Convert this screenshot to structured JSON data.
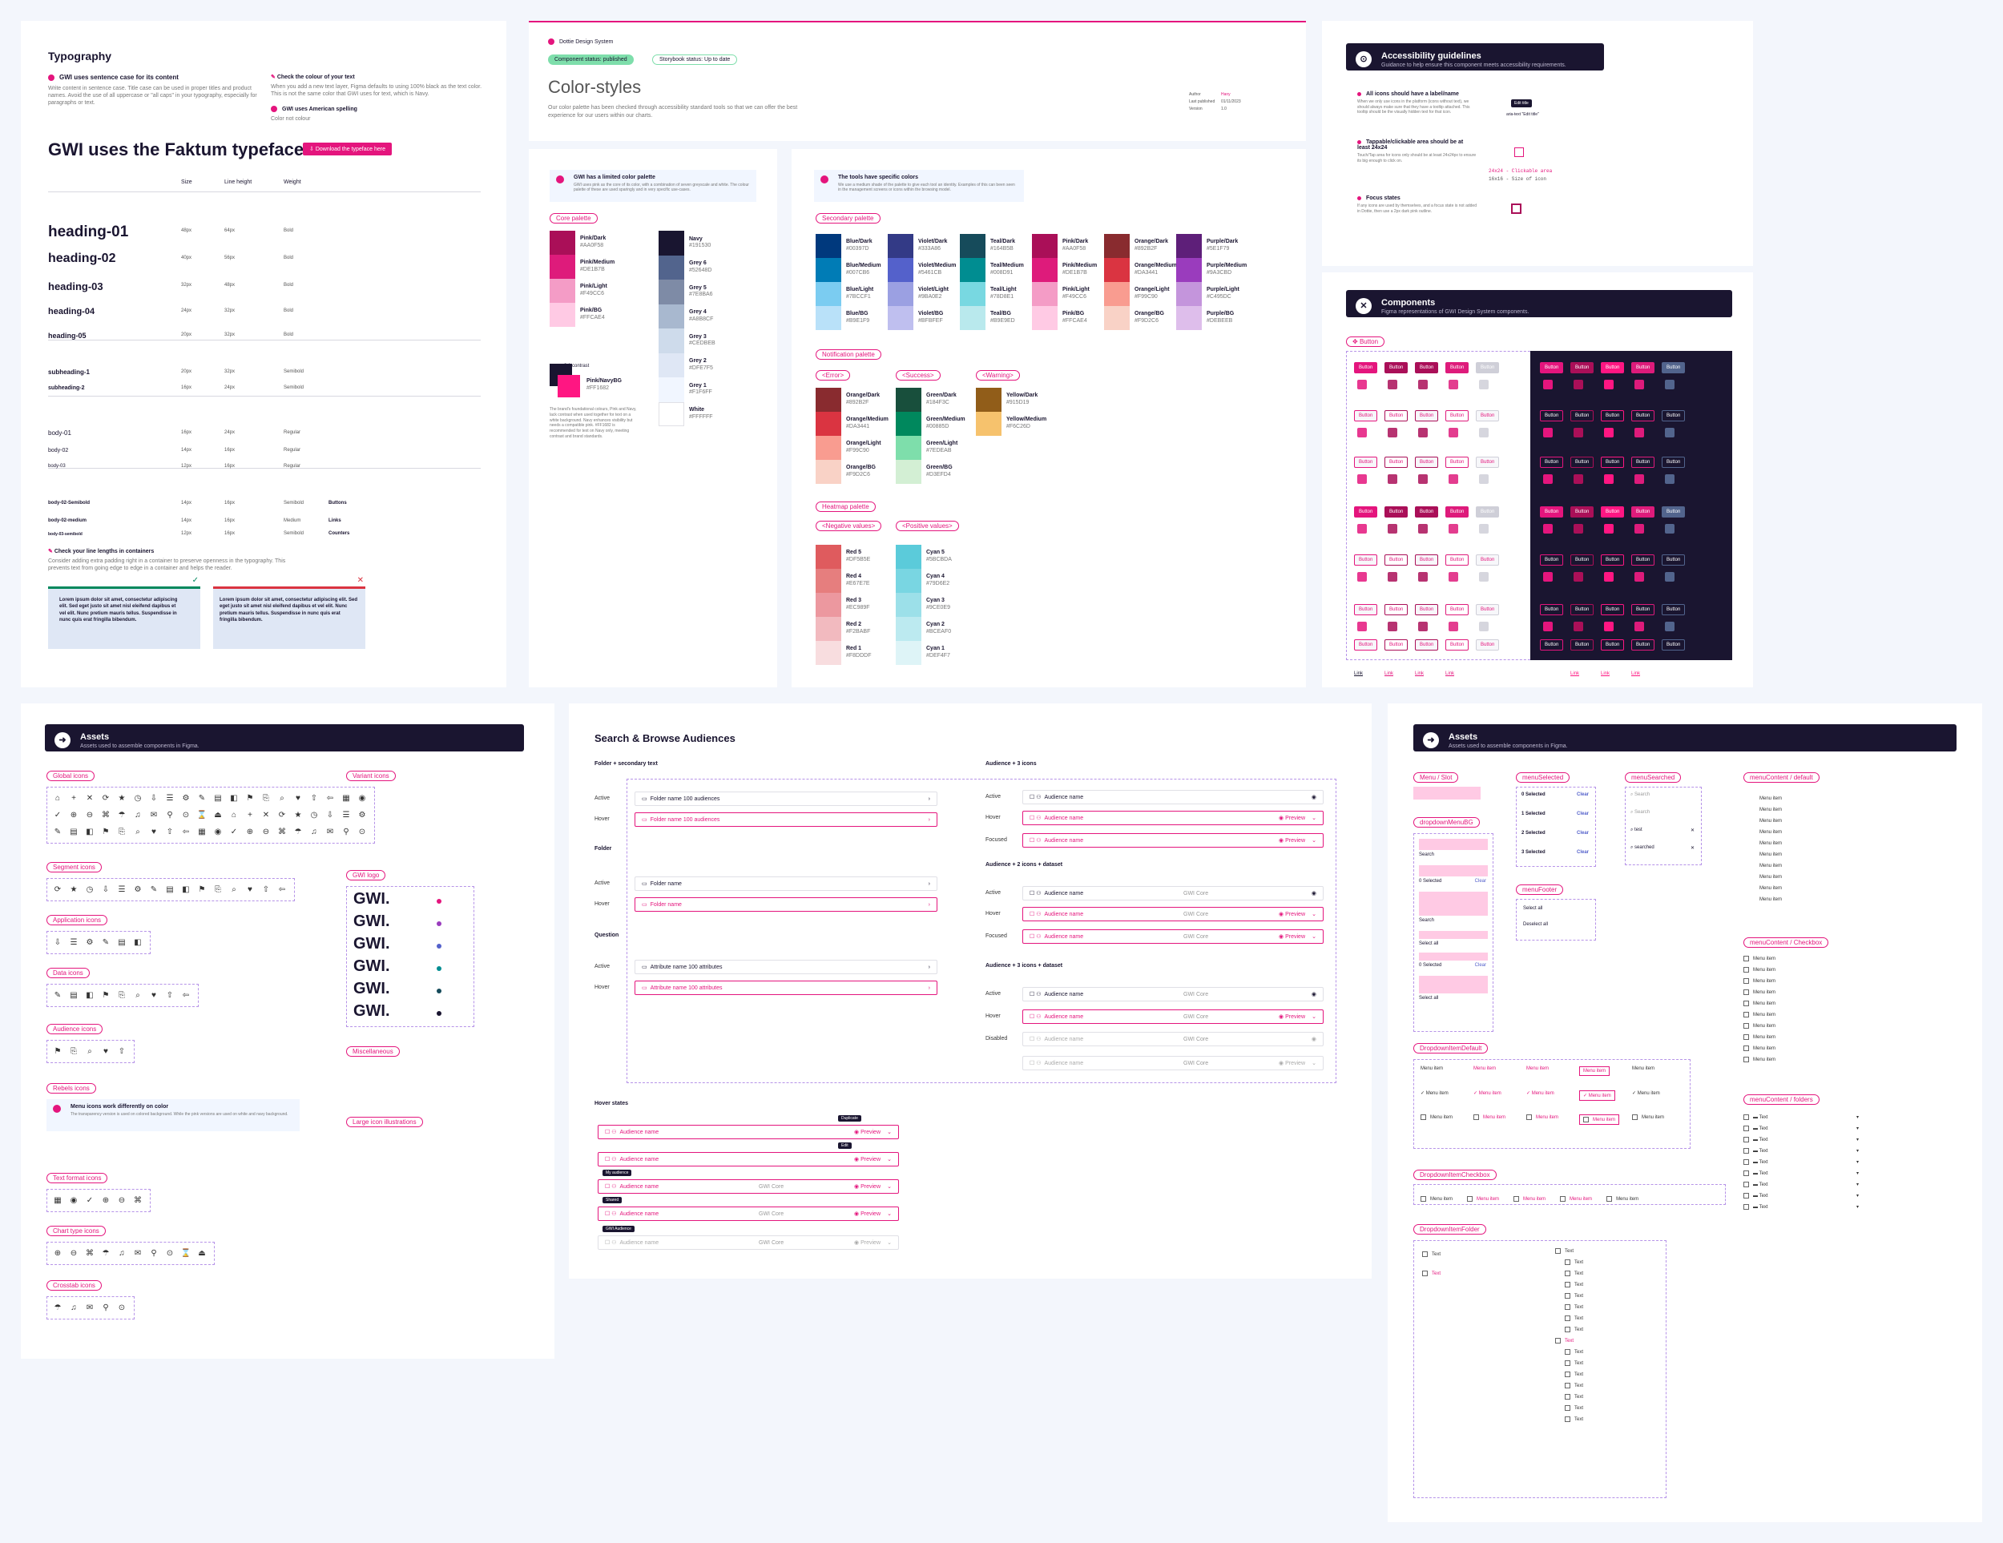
{
  "typography": {
    "title": "Typography",
    "rule1": "GWI uses sentence case for its content",
    "rule1_desc": "Write content in sentence case. Title case can be used in proper titles and product names. Avoid the use of all uppercase or \"all caps\" in your typography, especially for paragraphs or text.",
    "rule2": "Check the colour of your text",
    "rule2_desc": "When you add a new text layer, Figma defaults to using 100% black as the text color. This is not the same color that GWI uses for text, which is Navy.",
    "rule3": "GWI uses American spelling",
    "rule3_desc": "Color not colour",
    "headline": "GWI uses the Faktum typeface",
    "download": "Download the typeface here",
    "col_size": "Size",
    "col_lh": "Line height",
    "col_weight": "Weight",
    "rows": [
      {
        "name": "heading-01",
        "size": "48px",
        "lh": "64px",
        "weight": "Bold"
      },
      {
        "name": "heading-02",
        "size": "40px",
        "lh": "56px",
        "weight": "Bold"
      },
      {
        "name": "heading-03",
        "size": "32px",
        "lh": "48px",
        "weight": "Bold"
      },
      {
        "name": "heading-04",
        "size": "24px",
        "lh": "32px",
        "weight": "Bold"
      },
      {
        "name": "heading-05",
        "size": "20px",
        "lh": "32px",
        "weight": "Bold"
      },
      {
        "name": "subheading-1",
        "size": "20px",
        "lh": "32px",
        "weight": "Semibold"
      },
      {
        "name": "subheading-2",
        "size": "16px",
        "lh": "24px",
        "weight": "Semibold"
      },
      {
        "name": "body-01",
        "size": "16px",
        "lh": "24px",
        "weight": "Regular"
      },
      {
        "name": "body-02",
        "size": "14px",
        "lh": "16px",
        "weight": "Regular"
      },
      {
        "name": "body-03",
        "size": "12px",
        "lh": "16px",
        "weight": "Regular"
      },
      {
        "name": "body-02-Semibold",
        "size": "14px",
        "lh": "16px",
        "weight": "Semibold",
        "use": "Buttons"
      },
      {
        "name": "body-02-medium",
        "size": "14px",
        "lh": "16px",
        "weight": "Medium",
        "use": "Links"
      },
      {
        "name": "body-03-semibold",
        "size": "12px",
        "lh": "16px",
        "weight": "Semibold",
        "use": "Counters"
      }
    ],
    "linelen_title": "Check your line lengths in containers",
    "linelen_desc": "Consider adding extra padding right in a container to preserve openness in the typography. This prevents text from going edge to edge in a container and helps the reader.",
    "lorem": "Lorem ipsum dolor sit amet, consectetur adipiscing elit. Sed eget justo sit amet nisl eleifend dapibus et vel elit. Nunc pretium mauris tellus. Suspendisse in nunc quis erat fringilla bibendum."
  },
  "color_header": {
    "system": "Dottie Design System",
    "status1": "Component status: published",
    "status2": "Storybook status: Up to date",
    "title": "Color-styles",
    "desc": "Our color palette has been checked through accessibility standard tools so that we can offer the best experience for our users within our charts.",
    "meta_author_k": "Author",
    "meta_author_v": "Hany",
    "meta_pub_k": "Last published",
    "meta_pub_v": "01/11/2023",
    "meta_ver_k": "Version",
    "meta_ver_v": "1.0"
  },
  "core_palette": {
    "note_title": "GWI has a limited color palette",
    "note_desc": "GWI uses pink as the core of its color, with a combination of seven greyscale and white. The colour palette of these are used sparingly and in very specific use-cases.",
    "tag": "Core palette",
    "pinks": [
      {
        "name": "Pink/Dark",
        "hex": "#AA0F58",
        "color": "#aa0f58"
      },
      {
        "name": "Pink/Medium",
        "hex": "#DE1B7B",
        "color": "#de1b7b"
      },
      {
        "name": "Pink/Light",
        "hex": "#F49CC6",
        "color": "#f49cc6"
      },
      {
        "name": "Pink/BG",
        "hex": "#FFCAE4",
        "color": "#ffcae4"
      }
    ],
    "greys": [
      {
        "name": "Navy",
        "hex": "#191530",
        "color": "#191530"
      },
      {
        "name": "Grey 6",
        "hex": "#52648D",
        "color": "#52648d"
      },
      {
        "name": "Grey 5",
        "hex": "#7E8BA6",
        "color": "#7e8ba6"
      },
      {
        "name": "Grey 4",
        "hex": "#A8B8CF",
        "color": "#a8b8cf"
      },
      {
        "name": "Grey 3",
        "hex": "#CEDBEB",
        "color": "#cedbeb"
      },
      {
        "name": "Grey 2",
        "hex": "#DFE7F5",
        "color": "#dfe7f5"
      },
      {
        "name": "Grey 1",
        "hex": "#F1F6FF",
        "color": "#f1f6ff"
      },
      {
        "name": "White",
        "hex": "#FFFFFF",
        "color": "#ffffff"
      }
    ],
    "contrast_label": "3:1 contrast",
    "contrast_name": "Pink/NavyBG",
    "contrast_hex": "#FF1682",
    "contrast_desc": "The brand's foundational colours, Pink and Navy, lack contrast when used together for text on a white background. Navy enhances visibility but needs a compatible pink. #FF1682 is recommended for text on Navy only, meeting contrast and brand standards."
  },
  "tool_palette": {
    "note_title": "The tools have specific colors",
    "note_desc": "We use a medium shade of the palette to give each tool an identity. Examples of this can been seen in the management screens or icons within the browsing model.",
    "secondary_tag": "Secondary palette",
    "secondary": [
      [
        {
          "name": "Blue/Dark",
          "hex": "#00397D",
          "color": "#00397d"
        },
        {
          "name": "Blue/Medium",
          "hex": "#007CB6",
          "color": "#007cb6"
        },
        {
          "name": "Blue/Light",
          "hex": "#7BCCF1",
          "color": "#7bccf1"
        },
        {
          "name": "Blue/BG",
          "hex": "#B9E1F9",
          "color": "#b9e1f9"
        }
      ],
      [
        {
          "name": "Violet/Dark",
          "hex": "#333A86",
          "color": "#333a86"
        },
        {
          "name": "Violet/Medium",
          "hex": "#5461CB",
          "color": "#5461cb"
        },
        {
          "name": "Violet/Light",
          "hex": "#9BA0E2",
          "color": "#9ba0e2"
        },
        {
          "name": "Violet/BG",
          "hex": "#BFBFEF",
          "color": "#bfbfef"
        }
      ],
      [
        {
          "name": "Teal/Dark",
          "hex": "#164B5B",
          "color": "#164b5b"
        },
        {
          "name": "Teal/Medium",
          "hex": "#008D91",
          "color": "#008d91"
        },
        {
          "name": "Teal/Light",
          "hex": "#78D8E1",
          "color": "#78d8e1"
        },
        {
          "name": "Teal/BG",
          "hex": "#B9E9ED",
          "color": "#b9e9ed"
        }
      ],
      [
        {
          "name": "Pink/Dark",
          "hex": "#AA0F58",
          "color": "#aa0f58"
        },
        {
          "name": "Pink/Medium",
          "hex": "#DE1B7B",
          "color": "#de1b7b"
        },
        {
          "name": "Pink/Light",
          "hex": "#F49CC6",
          "color": "#f49cc6"
        },
        {
          "name": "Pink/BG",
          "hex": "#FFCAE4",
          "color": "#ffcae4"
        }
      ],
      [
        {
          "name": "Orange/Dark",
          "hex": "#892B2F",
          "color": "#892b2f"
        },
        {
          "name": "Orange/Medium",
          "hex": "#DA3441",
          "color": "#da3441"
        },
        {
          "name": "Orange/Light",
          "hex": "#F99C90",
          "color": "#f99c90"
        },
        {
          "name": "Orange/BG",
          "hex": "#F9D2C6",
          "color": "#f9d2c6"
        }
      ],
      [
        {
          "name": "Purple/Dark",
          "hex": "#5E1F79",
          "color": "#5e1f79"
        },
        {
          "name": "Purple/Medium",
          "hex": "#9A3CBD",
          "color": "#9a3cbd"
        },
        {
          "name": "Purple/Light",
          "hex": "#C495DC",
          "color": "#c495dc"
        },
        {
          "name": "Purple/BG",
          "hex": "#DEBEEB",
          "color": "#debeeb"
        }
      ]
    ],
    "notification_tag": "Notification palette",
    "notif_groups": [
      {
        "tag": "Error",
        "items": [
          {
            "name": "Orange/Dark",
            "hex": "#892B2F",
            "color": "#892b2f"
          },
          {
            "name": "Orange/Medium",
            "hex": "#DA3441",
            "color": "#da3441"
          },
          {
            "name": "Orange/Light",
            "hex": "#F99C90",
            "color": "#f99c90"
          },
          {
            "name": "Orange/BG",
            "hex": "#F9D2C6",
            "color": "#f9d2c6"
          }
        ]
      },
      {
        "tag": "Success",
        "items": [
          {
            "name": "Green/Dark",
            "hex": "#184F3C",
            "color": "#184f3c"
          },
          {
            "name": "Green/Medium",
            "hex": "#00885D",
            "color": "#00885d"
          },
          {
            "name": "Green/Light",
            "hex": "#7EDEAB",
            "color": "#7edeab"
          },
          {
            "name": "Green/BG",
            "hex": "#D3EFD4",
            "color": "#d3efd4"
          }
        ]
      },
      {
        "tag": "Warning",
        "items": [
          {
            "name": "Yellow/Dark",
            "hex": "#915D19",
            "color": "#915d19"
          },
          {
            "name": "Yellow/Medium",
            "hex": "#F6C26D",
            "color": "#f6c26d"
          }
        ]
      }
    ],
    "heatmap_tag": "Heatmap palette",
    "heat_groups": [
      {
        "tag": "Negative values",
        "items": [
          {
            "name": "Red 5",
            "hex": "#DF5B5E",
            "color": "#df5b5e"
          },
          {
            "name": "Red 4",
            "hex": "#E67E7E",
            "color": "#e67e7e"
          },
          {
            "name": "Red 3",
            "hex": "#EC989F",
            "color": "#ec989f"
          },
          {
            "name": "Red 2",
            "hex": "#F2BABF",
            "color": "#f2babf"
          },
          {
            "name": "Red 1",
            "hex": "#F8DDDF",
            "color": "#f8dddf"
          }
        ]
      },
      {
        "tag": "Positive values",
        "items": [
          {
            "name": "Cyan 5",
            "hex": "#5BCBDA",
            "color": "#5bcbda"
          },
          {
            "name": "Cyan 4",
            "hex": "#79D6E2",
            "color": "#79d6e2"
          },
          {
            "name": "Cyan 3",
            "hex": "#9CE0E9",
            "color": "#9ce0e9"
          },
          {
            "name": "Cyan 2",
            "hex": "#BCEAF0",
            "color": "#bceaf0"
          },
          {
            "name": "Cyan 1",
            "hex": "#DEF4F7",
            "color": "#def4f7"
          }
        ]
      }
    ]
  },
  "a11y": {
    "title": "Accessibility guidelines",
    "sub": "Guidance to help ensure this component meets accessibility requirements.",
    "r1": "All icons should have a label/name",
    "r1_desc": "When we only use icons in the platform (icons without text), we should always make sure that they have a tooltip attached. This tooltip should be the visually hidden text for that icon.",
    "r2": "Tappable/clickable area should be at least 24x24",
    "r2_desc": "Touch/Tap area for icons only should be at least 24x24px to ensure its big enough to click on.",
    "r3": "Focus states",
    "r3_desc": "If any icons are used by themselves, and a focus state is not added in Dottie, then use a 2px dark pink outline.",
    "tip": "Edit title",
    "aria": "aria-text \"Edit title\"",
    "clickable": "24x24 - Clickable area",
    "iconsize": "16x16 - Size of icon"
  },
  "components": {
    "title": "Components",
    "sub": "Figma representations of GWI Design System components.",
    "tag": "Button",
    "btn": "Button",
    "link": "Link"
  },
  "assets_left": {
    "title": "Assets",
    "sub": "Assets used to assemble components in Figma.",
    "groups": [
      "Global icons",
      "Segment icons",
      "Application icons",
      "Data icons",
      "Audience icons",
      "Rebels icons",
      "Text format icons",
      "Chart type icons",
      "Crosstab icons"
    ],
    "right_groups": [
      "Variant icons",
      "GWI logo",
      "Miscellaneous",
      "Large icon illustrations"
    ],
    "rebels_note": "Menu icons work differently on color",
    "rebels_desc": "The transparency version is used on colored background. While the pink versions are used on white and navy background.",
    "logo": "GWI."
  },
  "search": {
    "title": "Search & Browse Audiences",
    "s1": "Folder + secondary text",
    "s2": "Folder",
    "s3": "Question",
    "s4": "Audience + 3 icons",
    "s5": "Audience + 2 icons + dataset",
    "s6": "Audience + 3 icons + dataset",
    "hover": "Hover states",
    "active": "Active",
    "hov": "Hover",
    "focused": "Focused",
    "disabled": "Disabled",
    "folder": "Folder name",
    "audiences": "100 audiences",
    "attr": "Attribute name",
    "attrs": "100 attributes",
    "aud": "Audience name",
    "preview": "Preview",
    "dataset": "GWI Core",
    "tt1": "Duplicate",
    "tt2": "Edit",
    "tt3": "My audience",
    "tt4": "Shared",
    "tt5": "GWI Audience"
  },
  "assets_right": {
    "title": "Assets",
    "sub": "Assets used to assemble components in Figma.",
    "tags": [
      "Menu / Slot",
      "menuSelected",
      "menuSearched",
      "menuContent / default",
      "dropdownMenuBG",
      "menuFooter",
      "menuContent / Checkbox",
      "DropdownItemDefault",
      "menuContent / folders",
      "DropdownItemCheckbox",
      "DropdownItemFolder"
    ],
    "selected0": "0 Selected",
    "selected1": "1 Selected",
    "selected2": "2 Selected",
    "selected3": "3 Selected",
    "clear": "Clear",
    "search": "Search",
    "typed1": "test",
    "typed2": "searched",
    "selectall": "Select all",
    "deselectall": "Deselect all",
    "menuitem": "Menu item",
    "text": "Text"
  }
}
